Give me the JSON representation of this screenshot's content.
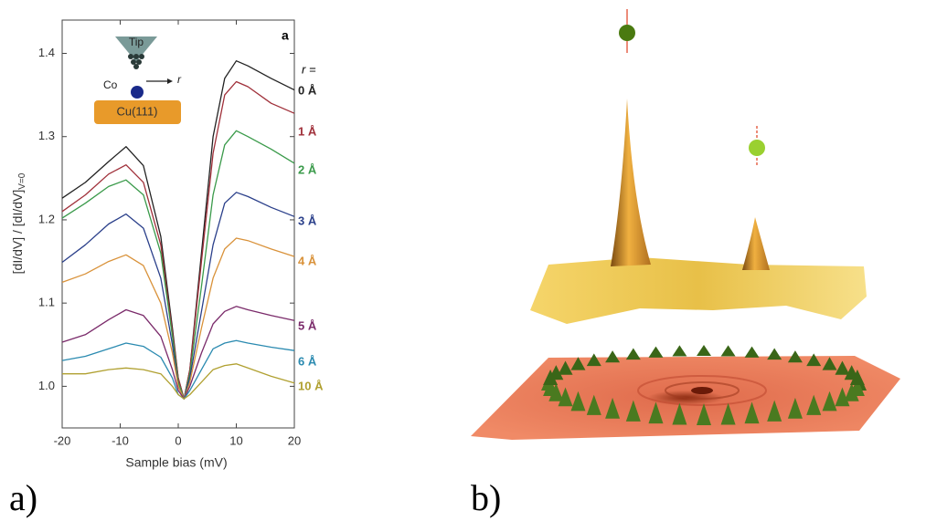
{
  "panels": [
    {
      "label": "a)"
    },
    {
      "label": "b)"
    }
  ],
  "chart_data": {
    "type": "line",
    "panel_tag": "a",
    "xlabel": "Sample bias (mV)",
    "ylabel": "[dI/dV] / [dI/dV]",
    "ylabel_subscript": "V=0",
    "legend_title": "r =",
    "inset": {
      "tip": "Tip",
      "adatom": "Co",
      "distance": "r",
      "surface": "Cu(111)"
    },
    "x": [
      -20,
      -16,
      -12,
      -9,
      -6,
      -3,
      -1,
      0,
      1,
      2,
      4,
      6,
      8,
      10,
      12,
      16,
      20
    ],
    "xlim": [
      -20,
      20
    ],
    "xticks": [
      -20,
      -10,
      0,
      10,
      20
    ],
    "ylim": [
      0.95,
      1.44
    ],
    "yticks": [
      {
        "value": 1,
        "label": "1.0"
      },
      1.1,
      1.2,
      1.3,
      1.4
    ],
    "series": [
      {
        "name": "0 Å",
        "color": "#222222",
        "values": [
          1.226,
          1.245,
          1.27,
          1.288,
          1.265,
          1.18,
          1.07,
          1.01,
          0.985,
          1.02,
          1.16,
          1.3,
          1.37,
          1.391,
          1.385,
          1.37,
          1.356
        ]
      },
      {
        "name": "1 Å",
        "color": "#a0303a",
        "values": [
          1.21,
          1.23,
          1.255,
          1.266,
          1.245,
          1.17,
          1.065,
          1.01,
          0.985,
          1.02,
          1.15,
          1.28,
          1.35,
          1.366,
          1.36,
          1.34,
          1.328
        ]
      },
      {
        "name": "2 Å",
        "color": "#3a9a4a",
        "values": [
          1.202,
          1.22,
          1.24,
          1.248,
          1.23,
          1.16,
          1.06,
          1.005,
          0.985,
          1.015,
          1.12,
          1.23,
          1.29,
          1.307,
          1.3,
          1.285,
          1.268
        ]
      },
      {
        "name": "3 Å",
        "color": "#2a3f8a",
        "values": [
          1.149,
          1.17,
          1.195,
          1.207,
          1.19,
          1.13,
          1.05,
          1.0,
          0.985,
          1.01,
          1.09,
          1.17,
          1.22,
          1.233,
          1.228,
          1.215,
          1.204
        ]
      },
      {
        "name": "4 Å",
        "color": "#d9923a",
        "values": [
          1.125,
          1.135,
          1.15,
          1.158,
          1.145,
          1.1,
          1.04,
          1.0,
          0.985,
          1.005,
          1.07,
          1.13,
          1.165,
          1.178,
          1.175,
          1.165,
          1.156
        ]
      },
      {
        "name": "5 Å",
        "color": "#7a2a6a",
        "values": [
          1.053,
          1.062,
          1.08,
          1.092,
          1.085,
          1.06,
          1.02,
          0.995,
          0.985,
          1.0,
          1.04,
          1.075,
          1.09,
          1.096,
          1.092,
          1.085,
          1.079
        ]
      },
      {
        "name": "6 Å",
        "color": "#2a8ab0",
        "values": [
          1.031,
          1.036,
          1.045,
          1.052,
          1.048,
          1.035,
          1.01,
          0.99,
          0.985,
          0.995,
          1.02,
          1.045,
          1.052,
          1.055,
          1.052,
          1.047,
          1.043
        ]
      },
      {
        "name": "10 Å",
        "color": "#b0a030",
        "values": [
          1.015,
          1.015,
          1.02,
          1.022,
          1.02,
          1.015,
          1.0,
          0.99,
          0.985,
          0.99,
          1.005,
          1.02,
          1.025,
          1.027,
          1.022,
          1.012,
          1.004
        ]
      }
    ]
  }
}
